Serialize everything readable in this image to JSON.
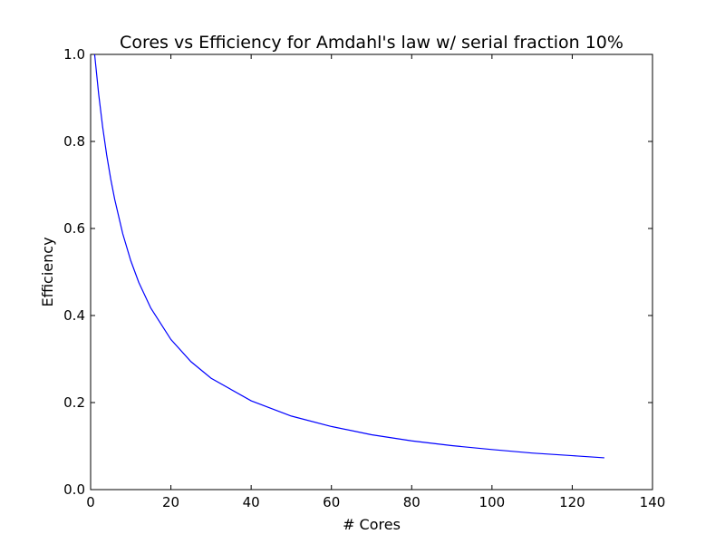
{
  "chart_data": {
    "type": "line",
    "title": "Cores vs Efficiency for Amdahl's law w/ serial fraction 10%",
    "xlabel": "# Cores",
    "ylabel": "Efficiency",
    "xlim": [
      0,
      140
    ],
    "ylim": [
      0.0,
      1.0
    ],
    "xticks": [
      0,
      20,
      40,
      60,
      80,
      100,
      120,
      140
    ],
    "yticks": [
      0.0,
      0.2,
      0.4,
      0.6,
      0.8,
      1.0
    ],
    "xtick_labels": [
      "0",
      "20",
      "40",
      "60",
      "80",
      "100",
      "120",
      "140"
    ],
    "ytick_labels": [
      "0.0",
      "0.2",
      "0.4",
      "0.6",
      "0.8",
      "1.0"
    ],
    "grid": false,
    "series": [
      {
        "color": "#0000ff",
        "x": [
          1,
          2,
          3,
          4,
          5,
          6,
          8,
          10,
          12,
          15,
          20,
          25,
          30,
          40,
          50,
          60,
          70,
          80,
          90,
          100,
          110,
          120,
          128
        ],
        "y": [
          1.0,
          0.909,
          0.833,
          0.769,
          0.714,
          0.667,
          0.588,
          0.526,
          0.476,
          0.417,
          0.345,
          0.294,
          0.256,
          0.204,
          0.169,
          0.145,
          0.126,
          0.112,
          0.101,
          0.092,
          0.084,
          0.078,
          0.073
        ]
      }
    ]
  }
}
